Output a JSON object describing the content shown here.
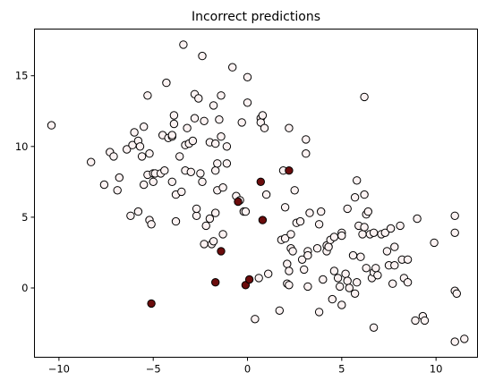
{
  "chart_data": {
    "type": "scatter",
    "title": "Incorrect predictions",
    "xlabel": "",
    "ylabel": "",
    "xlim": [
      -11.3,
      12.2
    ],
    "ylim": [
      -4.9,
      18.3
    ],
    "xticks": [
      -10,
      -5,
      0,
      5,
      10
    ],
    "yticks": [
      0,
      5,
      10,
      15
    ],
    "grid": false,
    "legend": "none",
    "colors": {
      "correct_fill": "#fcf2f2",
      "incorrect_fill": "#6b0c0c",
      "edge": "#000000"
    },
    "series": [
      {
        "points": [
          [
            -10.4,
            11.5
          ],
          [
            -8.3,
            8.9
          ],
          [
            -7.6,
            7.3
          ],
          [
            -7.3,
            9.6
          ],
          [
            -7.1,
            9.3
          ],
          [
            -6.9,
            6.9
          ],
          [
            -6.8,
            7.8
          ],
          [
            -6.4,
            9.8
          ],
          [
            -6.2,
            5.1
          ],
          [
            -6.1,
            10.1
          ],
          [
            -6.0,
            11.0
          ],
          [
            -5.8,
            5.4
          ],
          [
            -5.8,
            10.4
          ],
          [
            -5.7,
            10.0
          ],
          [
            -5.6,
            9.3
          ],
          [
            -5.5,
            7.3
          ],
          [
            -5.5,
            11.4
          ],
          [
            -5.3,
            13.6
          ],
          [
            -5.3,
            8.0
          ],
          [
            -5.2,
            9.5
          ],
          [
            -5.2,
            4.8
          ],
          [
            -5.1,
            4.5
          ],
          [
            -5.0,
            8.1
          ],
          [
            -5.0,
            7.5
          ],
          [
            -4.9,
            8.1
          ],
          [
            -4.6,
            8.1
          ],
          [
            -4.5,
            10.8
          ],
          [
            -4.4,
            8.3
          ],
          [
            -4.3,
            14.5
          ],
          [
            -4.2,
            10.6
          ],
          [
            -4.0,
            10.7
          ],
          [
            -4.0,
            10.8
          ],
          [
            -4.0,
            7.5
          ],
          [
            -3.9,
            12.2
          ],
          [
            -3.9,
            11.6
          ],
          [
            -3.8,
            4.7
          ],
          [
            -3.8,
            6.6
          ],
          [
            -3.6,
            9.3
          ],
          [
            -3.5,
            6.8
          ],
          [
            -3.4,
            17.2
          ],
          [
            -3.3,
            8.3
          ],
          [
            -3.3,
            10.1
          ],
          [
            -3.2,
            11.3
          ],
          [
            -3.1,
            10.2
          ],
          [
            -3.0,
            8.2
          ],
          [
            -2.9,
            10.4
          ],
          [
            -2.8,
            12.0
          ],
          [
            -2.8,
            13.7
          ],
          [
            -2.7,
            5.1
          ],
          [
            -2.7,
            5.6
          ],
          [
            -2.6,
            13.4
          ],
          [
            -2.5,
            8.1
          ],
          [
            -2.4,
            7.5
          ],
          [
            -2.4,
            16.4
          ],
          [
            -2.3,
            11.8
          ],
          [
            -2.3,
            3.1
          ],
          [
            -2.2,
            4.4
          ],
          [
            -2.0,
            10.3
          ],
          [
            -2.0,
            4.9
          ],
          [
            -1.9,
            3.1
          ],
          [
            -1.8,
            3.3
          ],
          [
            -1.8,
            12.9
          ],
          [
            -1.7,
            8.3
          ],
          [
            -1.7,
            5.3
          ],
          [
            -1.7,
            10.2
          ],
          [
            -1.6,
            8.8
          ],
          [
            -1.6,
            6.9
          ],
          [
            -1.5,
            11.9
          ],
          [
            -1.4,
            13.6
          ],
          [
            -1.4,
            10.7
          ],
          [
            -1.3,
            7.1
          ],
          [
            -1.3,
            3.8
          ],
          [
            -1.1,
            8.8
          ],
          [
            -1.1,
            10.0
          ],
          [
            -0.8,
            15.6
          ],
          [
            -0.6,
            6.5
          ],
          [
            -0.4,
            6.2
          ],
          [
            -0.3,
            11.7
          ],
          [
            -0.2,
            5.4
          ],
          [
            -0.1,
            5.4
          ],
          [
            0.0,
            14.9
          ],
          [
            0.0,
            13.1
          ],
          [
            0.4,
            -2.2
          ],
          [
            0.6,
            0.7
          ],
          [
            0.7,
            12.0
          ],
          [
            0.7,
            11.7
          ],
          [
            0.8,
            12.2
          ],
          [
            0.9,
            11.3
          ],
          [
            1.0,
            6.6
          ],
          [
            1.1,
            1.0
          ],
          [
            1.7,
            -1.6
          ],
          [
            1.8,
            3.4
          ],
          [
            1.9,
            8.3
          ],
          [
            2.0,
            5.7
          ],
          [
            2.0,
            3.5
          ],
          [
            2.1,
            0.3
          ],
          [
            2.1,
            1.7
          ],
          [
            2.2,
            1.2
          ],
          [
            2.2,
            11.3
          ],
          [
            2.2,
            0.2
          ],
          [
            2.3,
            3.8
          ],
          [
            2.3,
            2.8
          ],
          [
            2.4,
            2.6
          ],
          [
            2.5,
            6.9
          ],
          [
            2.6,
            4.6
          ],
          [
            2.8,
            4.7
          ],
          [
            2.9,
            2.0
          ],
          [
            3.0,
            1.3
          ],
          [
            3.1,
            10.5
          ],
          [
            3.1,
            9.5
          ],
          [
            3.2,
            2.6
          ],
          [
            3.2,
            2.3
          ],
          [
            3.2,
            0.1
          ],
          [
            3.3,
            5.3
          ],
          [
            3.7,
            2.8
          ],
          [
            3.8,
            4.5
          ],
          [
            3.8,
            -1.7
          ],
          [
            3.9,
            5.4
          ],
          [
            4.0,
            0.6
          ],
          [
            4.2,
            3.0
          ],
          [
            4.2,
            2.6
          ],
          [
            4.3,
            2.9
          ],
          [
            4.4,
            3.4
          ],
          [
            4.5,
            -0.8
          ],
          [
            4.6,
            1.2
          ],
          [
            4.6,
            3.6
          ],
          [
            4.8,
            0.7
          ],
          [
            4.9,
            0.1
          ],
          [
            5.0,
            3.9
          ],
          [
            5.0,
            3.7
          ],
          [
            5.0,
            -1.2
          ],
          [
            5.2,
            1.0
          ],
          [
            5.3,
            0.5
          ],
          [
            5.3,
            5.6
          ],
          [
            5.4,
            0.0
          ],
          [
            5.6,
            2.3
          ],
          [
            5.7,
            -0.4
          ],
          [
            5.7,
            6.4
          ],
          [
            5.8,
            0.4
          ],
          [
            5.8,
            7.6
          ],
          [
            5.9,
            4.4
          ],
          [
            6.0,
            2.2
          ],
          [
            6.1,
            3.8
          ],
          [
            6.2,
            4.3
          ],
          [
            6.2,
            6.6
          ],
          [
            6.2,
            13.5
          ],
          [
            6.3,
            5.2
          ],
          [
            6.3,
            1.4
          ],
          [
            6.4,
            5.4
          ],
          [
            6.5,
            3.8
          ],
          [
            6.6,
            0.7
          ],
          [
            6.7,
            1.1
          ],
          [
            6.7,
            3.9
          ],
          [
            6.7,
            -2.8
          ],
          [
            6.8,
            1.4
          ],
          [
            6.9,
            0.9
          ],
          [
            7.1,
            3.8
          ],
          [
            7.3,
            3.9
          ],
          [
            7.4,
            2.6
          ],
          [
            7.5,
            1.6
          ],
          [
            7.6,
            4.2
          ],
          [
            7.7,
            0.3
          ],
          [
            7.8,
            1.6
          ],
          [
            7.8,
            2.9
          ],
          [
            8.1,
            4.4
          ],
          [
            8.2,
            2.0
          ],
          [
            8.3,
            0.7
          ],
          [
            8.5,
            2.0
          ],
          [
            8.5,
            0.4
          ],
          [
            8.9,
            -2.3
          ],
          [
            9.0,
            4.9
          ],
          [
            9.3,
            -2.0
          ],
          [
            9.4,
            -2.3
          ],
          [
            9.9,
            3.2
          ],
          [
            11.0,
            5.1
          ],
          [
            11.0,
            3.9
          ],
          [
            11.0,
            -3.8
          ],
          [
            11.0,
            -0.2
          ],
          [
            11.1,
            -0.4
          ],
          [
            11.5,
            -3.6
          ]
        ]
      },
      {
        "points": [
          [
            -5.1,
            -1.1
          ],
          [
            -1.7,
            0.4
          ],
          [
            -1.4,
            2.6
          ],
          [
            -0.5,
            6.1
          ],
          [
            -0.1,
            0.2
          ],
          [
            0.1,
            0.6
          ],
          [
            0.7,
            7.5
          ],
          [
            0.8,
            4.8
          ],
          [
            2.2,
            8.3
          ]
        ]
      }
    ]
  }
}
